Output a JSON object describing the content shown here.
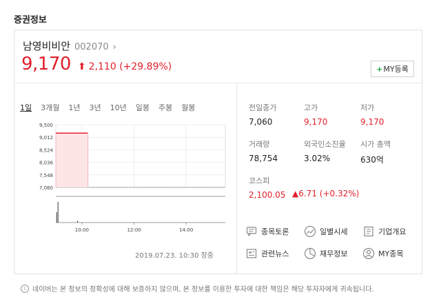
{
  "section_title": "증권정보",
  "stock": {
    "name": "남영비비안",
    "code": "002070",
    "price": "9,170",
    "change": "2,110 (+29.89%)",
    "my_button": "MY등록"
  },
  "periods": [
    "1일",
    "3개월",
    "1년",
    "3년",
    "10년",
    "일봉",
    "주봉",
    "월봉"
  ],
  "timestamp": "2019.07.23. 10:30 장중",
  "stats": {
    "prev_close": {
      "label": "전일종가",
      "value": "7,060"
    },
    "high": {
      "label": "고가",
      "value": "9,170"
    },
    "low": {
      "label": "저가",
      "value": "9,170"
    },
    "volume": {
      "label": "거래량",
      "value": "78,754"
    },
    "foreign_ratio": {
      "label": "외국인소진율",
      "value": "3.02%"
    },
    "market_cap": {
      "label": "시가 총액",
      "value": "630억"
    },
    "kospi": {
      "label": "코스피",
      "value": "2,100.05",
      "change": "6.71 (+0.32%)"
    }
  },
  "links": [
    "종목토론",
    "일별시세",
    "기업개요",
    "관련뉴스",
    "재무정보",
    "MY종목"
  ],
  "disclaimer": "네이버는 본 정보의 정확성에 대해 보증하지 않으며, 본 정보를 이용한 투자에 대한 책임은 해당 투자자에게 귀속됩니다.",
  "colors": {
    "up": "#e0202b",
    "accent_green": "#1fa543"
  },
  "chart_data": {
    "type": "area",
    "y_ticks": [
      "9,500",
      "9,012",
      "8,524",
      "8,036",
      "7,548",
      "7,060"
    ],
    "x_ticks": [
      "10:00",
      "12:00",
      "14:00"
    ],
    "ylim": [
      7060,
      9500
    ],
    "baseline": 7060,
    "series": [
      {
        "x": [
          "09:00",
          "10:14"
        ],
        "values": [
          9170,
          9170
        ]
      }
    ],
    "volume_bars": [
      {
        "x": "09:05",
        "height": 1.0
      },
      {
        "x": "09:02",
        "height": 0.5
      },
      {
        "x": "09:50",
        "height": 0.08
      }
    ],
    "grid": true
  }
}
